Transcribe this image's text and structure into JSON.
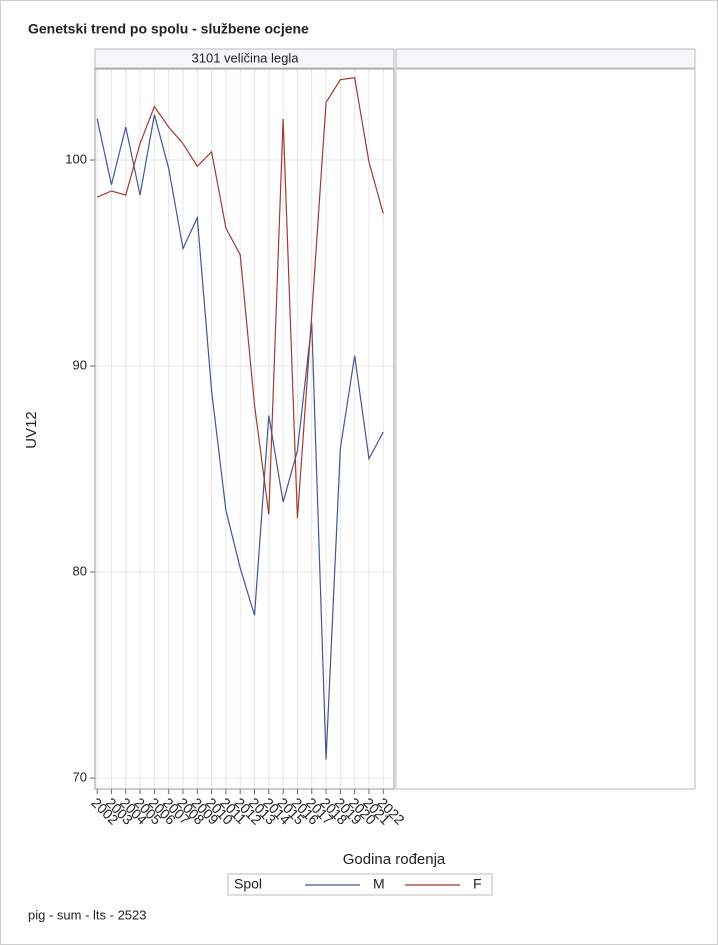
{
  "chart_data": {
    "type": "line",
    "title": "Genetski trend po spolu - službene ocjene",
    "panel_title": "3101 veličina legla",
    "x_label": "Godina rođenja",
    "y_label": "UV12",
    "legend_title": "Spol",
    "footnote": "pig - sum - lts - 2523",
    "x": [
      2002,
      2003,
      2004,
      2005,
      2006,
      2007,
      2008,
      2009,
      2010,
      2011,
      2012,
      2013,
      2014,
      2015,
      2016,
      2017,
      2018,
      2019,
      2020,
      2021,
      2022
    ],
    "xlim": [
      2001.85,
      2022.75
    ],
    "xticks": [
      2002,
      2003,
      2004,
      2005,
      2006,
      2007,
      2008,
      2009,
      2010,
      2011,
      2012,
      2013,
      2014,
      2015,
      2016,
      2017,
      2018,
      2019,
      2020,
      2021,
      2022
    ],
    "ylim": [
      69.47,
      104.42
    ],
    "yticks": [
      70,
      80,
      90,
      100
    ],
    "grid": true,
    "series": [
      {
        "name": "M",
        "color": "#445694",
        "values": [
          102.0,
          98.8,
          101.6,
          98.3,
          102.2,
          99.6,
          95.7,
          97.2,
          88.8,
          83.0,
          80.2,
          77.9,
          87.6,
          83.4,
          85.9,
          92.1,
          70.9,
          86.0,
          90.5,
          85.5,
          86.8
        ]
      },
      {
        "name": "F",
        "color": "#a23a2e",
        "values": [
          98.2,
          98.5,
          98.3,
          100.8,
          102.6,
          101.6,
          100.8,
          99.7,
          100.4,
          96.7,
          95.4,
          88.1,
          82.8,
          102.0,
          82.6,
          92.5,
          102.8,
          103.9,
          104.0,
          99.9,
          97.4
        ]
      }
    ]
  }
}
